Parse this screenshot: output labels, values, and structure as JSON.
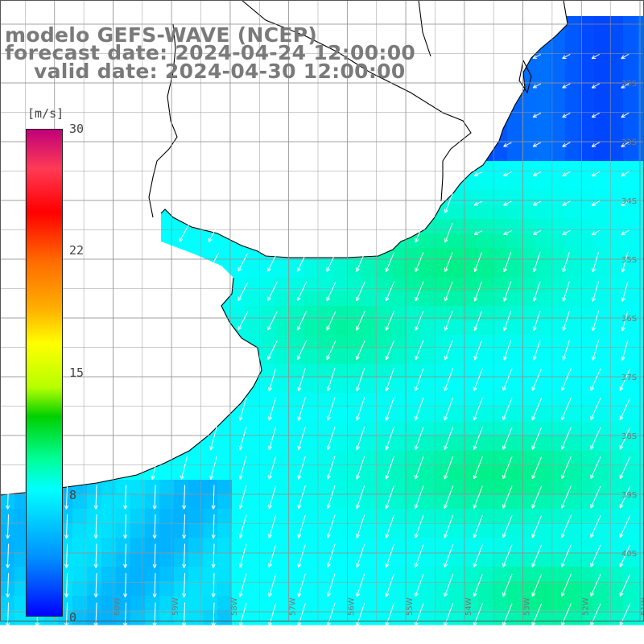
{
  "title": {
    "model": "modelo GEFS-WAVE (NCEP)",
    "forecast": "forecast date: 2024-04-24 12:00:00",
    "valid": "valid date: 2024-04-30 12:00:00"
  },
  "colorbar": {
    "unit": "[m/s]",
    "ticks": [
      "30",
      "22",
      "15",
      "8",
      "0"
    ],
    "tick_values": [
      30,
      22,
      15,
      8,
      0
    ],
    "range": [
      0,
      30
    ],
    "colors": [
      "#0000ff",
      "#0090ff",
      "#00ffff",
      "#00ff9c",
      "#00d000",
      "#ffff00",
      "#ff6a00",
      "#ff0000",
      "#c0007a"
    ]
  },
  "map": {
    "lon_labels": [
      "61W",
      "60W",
      "59W",
      "58W",
      "57W",
      "56W",
      "55W",
      "54W",
      "53W",
      "52W",
      "51W"
    ],
    "lat_labels": [
      "32S",
      "33S",
      "34S",
      "35S",
      "36S",
      "37S",
      "38S",
      "39S",
      "40S"
    ],
    "lon_range": [
      -62,
      -51
    ],
    "lat_range": [
      -41,
      -31
    ],
    "field": "wind speed and direction",
    "land_color": "#ffffff",
    "grid_color": "#888888",
    "coast_color": "#000000",
    "arrow_color": "#ffffff"
  }
}
